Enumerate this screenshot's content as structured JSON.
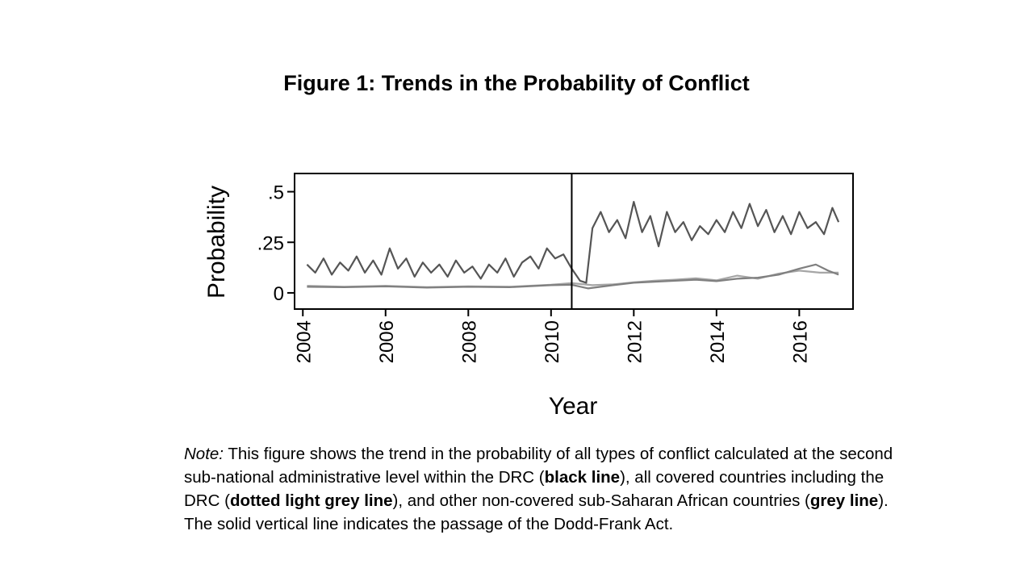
{
  "figure_title": "Figure 1: Trends in the Probability of Conflict",
  "note": {
    "label": "Note:",
    "p1": " This figure shows the trend in the probability of all types of conflict calculated at the second sub-national administrative level within the DRC (",
    "b1": "black line",
    "p2": "), all covered countries including the DRC (",
    "b2": "dotted light grey line",
    "p3": "), and other non-covered sub-Saharan African countries (",
    "b3": "grey line",
    "p4": "). The solid vertical line indicates the passage of the Dodd-Frank Act."
  },
  "chart_data": {
    "type": "line",
    "title": "",
    "xlabel": "Year",
    "ylabel": "Probability",
    "xlim": [
      2003.8,
      2017.3
    ],
    "ylim": [
      -0.08,
      0.59
    ],
    "xticks": [
      2004,
      2006,
      2008,
      2010,
      2012,
      2014,
      2016
    ],
    "xtick_labels": [
      "2004",
      "2006",
      "2008",
      "2010",
      "2012",
      "2014",
      "2016"
    ],
    "yticks": [
      0,
      0.25,
      0.5
    ],
    "ytick_labels": [
      "0",
      ".25",
      ".5"
    ],
    "vline": 2010.5,
    "grid": false,
    "legend": "none",
    "series": [
      {
        "color": "#555555",
        "x": [
          2004.1,
          2004.3,
          2004.5,
          2004.7,
          2004.9,
          2005.1,
          2005.3,
          2005.5,
          2005.7,
          2005.9,
          2006.1,
          2006.3,
          2006.5,
          2006.7,
          2006.9,
          2007.1,
          2007.3,
          2007.5,
          2007.7,
          2007.9,
          2008.1,
          2008.3,
          2008.5,
          2008.7,
          2008.9,
          2009.1,
          2009.3,
          2009.5,
          2009.7,
          2009.9,
          2010.1,
          2010.3,
          2010.5,
          2010.7,
          2010.85,
          2011.0,
          2011.2,
          2011.4,
          2011.6,
          2011.8,
          2012.0,
          2012.2,
          2012.4,
          2012.6,
          2012.8,
          2013.0,
          2013.2,
          2013.4,
          2013.6,
          2013.8,
          2014.0,
          2014.2,
          2014.4,
          2014.6,
          2014.8,
          2015.0,
          2015.2,
          2015.4,
          2015.6,
          2015.8,
          2016.0,
          2016.2,
          2016.4,
          2016.6,
          2016.8,
          2016.95
        ],
        "y": [
          0.14,
          0.1,
          0.17,
          0.09,
          0.15,
          0.11,
          0.18,
          0.1,
          0.16,
          0.09,
          0.22,
          0.12,
          0.17,
          0.08,
          0.15,
          0.1,
          0.14,
          0.08,
          0.16,
          0.1,
          0.13,
          0.07,
          0.14,
          0.1,
          0.17,
          0.08,
          0.15,
          0.18,
          0.12,
          0.22,
          0.17,
          0.19,
          0.12,
          0.06,
          0.05,
          0.32,
          0.4,
          0.3,
          0.36,
          0.27,
          0.45,
          0.3,
          0.38,
          0.23,
          0.4,
          0.3,
          0.35,
          0.26,
          0.33,
          0.29,
          0.36,
          0.3,
          0.4,
          0.32,
          0.44,
          0.33,
          0.41,
          0.3,
          0.38,
          0.29,
          0.4,
          0.32,
          0.35,
          0.29,
          0.42,
          0.35
        ]
      },
      {
        "color": "#a6a6a6",
        "x": [
          2004.1,
          2005.0,
          2006.0,
          2007.0,
          2008.0,
          2009.0,
          2010.0,
          2010.5,
          2011.0,
          2011.5,
          2012.0,
          2012.5,
          2013.0,
          2013.5,
          2014.0,
          2014.5,
          2015.0,
          2015.5,
          2016.0,
          2016.5,
          2016.95
        ],
        "y": [
          0.035,
          0.03,
          0.035,
          0.028,
          0.032,
          0.03,
          0.04,
          0.048,
          0.038,
          0.042,
          0.052,
          0.06,
          0.065,
          0.072,
          0.062,
          0.085,
          0.07,
          0.095,
          0.11,
          0.1,
          0.1
        ]
      },
      {
        "color": "#7f7f7f",
        "x": [
          2004.1,
          2005.0,
          2006.0,
          2007.0,
          2008.0,
          2009.0,
          2010.0,
          2010.5,
          2010.9,
          2011.5,
          2012.0,
          2012.5,
          2013.0,
          2013.5,
          2014.0,
          2014.5,
          2015.0,
          2015.5,
          2016.0,
          2016.4,
          2016.7,
          2016.95
        ],
        "y": [
          0.03,
          0.028,
          0.032,
          0.026,
          0.03,
          0.028,
          0.038,
          0.04,
          0.022,
          0.038,
          0.05,
          0.055,
          0.06,
          0.065,
          0.058,
          0.07,
          0.075,
          0.09,
          0.12,
          0.14,
          0.11,
          0.09
        ]
      }
    ]
  }
}
